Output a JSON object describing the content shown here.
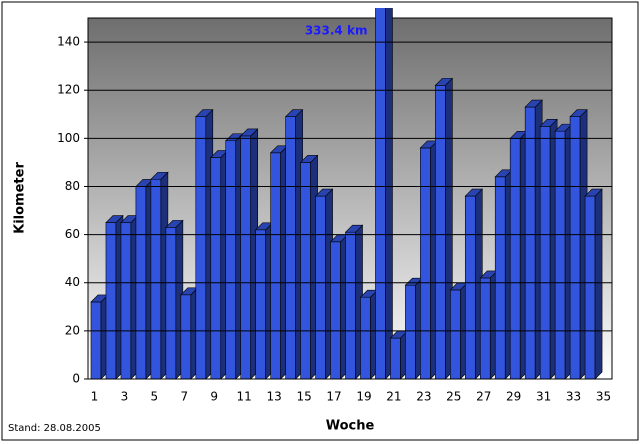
{
  "chart_data": {
    "type": "bar3d",
    "y_label": "Kilometer",
    "x_label": "Woche",
    "footnote": "Stand: 28.08.2005",
    "categories": [
      "1",
      null,
      "3",
      null,
      "5",
      null,
      "7",
      null,
      "9",
      null,
      "11",
      null,
      "13",
      null,
      "15",
      null,
      "17",
      null,
      "19",
      null,
      "21",
      null,
      "23",
      null,
      "25",
      null,
      "27",
      null,
      "29",
      null,
      "31",
      null,
      "33",
      null,
      "35"
    ],
    "values": [
      32,
      65,
      65,
      80,
      83,
      63,
      35,
      109,
      92,
      99,
      101,
      62,
      94,
      109,
      90,
      76,
      57,
      61,
      34,
      333.4,
      17,
      39,
      96,
      122,
      37,
      76,
      42,
      84,
      100,
      113,
      105,
      103,
      109,
      76,
      null
    ],
    "value_labels": [
      null,
      null,
      null,
      null,
      null,
      null,
      null,
      null,
      null,
      null,
      null,
      null,
      null,
      null,
      null,
      null,
      null,
      null,
      null,
      "333.4 km",
      null,
      null,
      null,
      null,
      null,
      null,
      null,
      null,
      null,
      null,
      null,
      null,
      null,
      null,
      null
    ],
    "color": "#3355dd",
    "ylim": [
      0,
      150
    ],
    "yticks": [
      0,
      20,
      40,
      60,
      80,
      100,
      120,
      140
    ],
    "grid": true
  }
}
